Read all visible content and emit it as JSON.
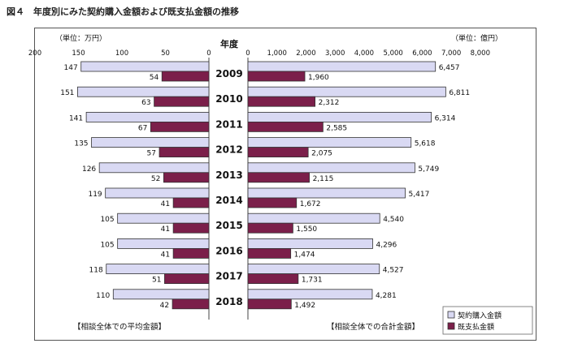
{
  "figure_title": "図４　年度別にみた契約購入金額および既支払金額の推移",
  "left_unit": "（単位：万円）",
  "right_unit": "（単位：億円）",
  "year_header": "年度",
  "left_caption": "【相談全体での平均金額】",
  "right_caption": "【相談全体での合計金額】",
  "legend": [
    {
      "name": "契約購入金額",
      "color": "#d9d9f3"
    },
    {
      "name": "既支払金額",
      "color": "#7b1f4a"
    }
  ],
  "chart_data": [
    {
      "type": "bar",
      "orientation": "horizontal-reversed",
      "title": "相談全体での平均金額",
      "unit": "万円",
      "categories": [
        "2009",
        "2010",
        "2011",
        "2012",
        "2013",
        "2014",
        "2015",
        "2016",
        "2017",
        "2018"
      ],
      "xlim": [
        0,
        200
      ],
      "ticks": [
        200,
        150,
        100,
        50,
        0
      ],
      "series": [
        {
          "name": "契約購入金額",
          "values": [
            147,
            151,
            141,
            135,
            126,
            119,
            105,
            105,
            118,
            110
          ]
        },
        {
          "name": "既支払金額",
          "values": [
            54,
            63,
            67,
            57,
            52,
            41,
            41,
            41,
            51,
            42
          ]
        }
      ]
    },
    {
      "type": "bar",
      "orientation": "horizontal",
      "title": "相談全体での合計金額",
      "unit": "億円",
      "categories": [
        "2009",
        "2010",
        "2011",
        "2012",
        "2013",
        "2014",
        "2015",
        "2016",
        "2017",
        "2018"
      ],
      "xlim": [
        0,
        8000
      ],
      "ticks": [
        0,
        1000,
        2000,
        3000,
        4000,
        5000,
        6000,
        7000,
        8000
      ],
      "tick_labels": [
        "0",
        "1,000",
        "2,000",
        "3,000",
        "4,000",
        "5,000",
        "6,000",
        "7,000",
        "8,000"
      ],
      "series": [
        {
          "name": "契約購入金額",
          "values": [
            6457,
            6811,
            6314,
            5618,
            5749,
            5417,
            4540,
            4296,
            4527,
            4281
          ],
          "labels": [
            "6,457",
            "6,811",
            "6,314",
            "5,618",
            "5,749",
            "5,417",
            "4,540",
            "4,296",
            "4,527",
            "4,281"
          ]
        },
        {
          "name": "既支払金額",
          "values": [
            1960,
            2312,
            2585,
            2075,
            2115,
            1672,
            1550,
            1474,
            1731,
            1492
          ],
          "labels": [
            "1,960",
            "2,312",
            "2,585",
            "2,075",
            "2,115",
            "1,672",
            "1,550",
            "1,474",
            "1,731",
            "1,492"
          ]
        }
      ]
    }
  ]
}
